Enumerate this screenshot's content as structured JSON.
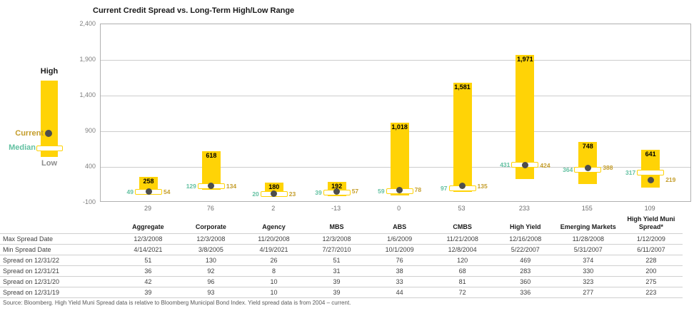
{
  "chart": {
    "title": "Current Credit Spread vs. Long-Term High/Low Range",
    "legend": {
      "high": "High",
      "current": "Current",
      "median": "Median",
      "low": "Low"
    }
  },
  "colors": {
    "bar_yellow": "#FFD306",
    "median_teal": "#63C1A2",
    "current_gold": "#C49D2B",
    "dot_gray": "#4D4D4D",
    "low_gray": "#6E6E6E",
    "grid_gray": "#CCCCCC"
  },
  "chart_data": {
    "type": "bar",
    "subtype": "floating-range-bar",
    "title": "Current Credit Spread vs. Long-Term High/Low Range",
    "categories": [
      "Aggregate",
      "Corporate",
      "Agency",
      "MBS",
      "ABS",
      "CMBS",
      "High Yield",
      "Emerging Markets",
      "High Yield Muni Spread*"
    ],
    "series": [
      {
        "name": "High",
        "values": [
          258,
          618,
          180,
          192,
          1018,
          1581,
          1971,
          748,
          641
        ]
      },
      {
        "name": "Median",
        "values": [
          49,
          129,
          20,
          39,
          59,
          97,
          431,
          364,
          317
        ]
      },
      {
        "name": "Current",
        "values": [
          54,
          134,
          23,
          57,
          78,
          135,
          424,
          388,
          219
        ]
      },
      {
        "name": "Low",
        "values": [
          29,
          76,
          2,
          -13,
          0,
          53,
          233,
          155,
          109
        ]
      }
    ],
    "ylim": [
      -100,
      2400
    ],
    "yticks": [
      2400,
      1900,
      1400,
      900,
      400,
      -100
    ],
    "grid": true,
    "legend_position": "left"
  },
  "table": {
    "columns": [
      "",
      "Aggregate",
      "Corporate",
      "Agency",
      "MBS",
      "ABS",
      "CMBS",
      "High Yield",
      "Emerging Markets",
      "High Yield Muni\nSpread*"
    ],
    "rows": [
      {
        "label": "Max Spread Date",
        "values": [
          "12/3/2008",
          "12/3/2008",
          "11/20/2008",
          "12/3/2008",
          "1/6/2009",
          "11/21/2008",
          "12/16/2008",
          "11/28/2008",
          "1/12/2009"
        ]
      },
      {
        "label": "Min Spread Date",
        "values": [
          "4/14/2021",
          "3/8/2005",
          "4/19/2021",
          "7/27/2010",
          "10/1/2009",
          "12/8/2004",
          "5/22/2007",
          "5/31/2007",
          "6/11/2007"
        ]
      },
      {
        "label": "Spread on 12/31/22",
        "values": [
          "51",
          "130",
          "26",
          "51",
          "76",
          "120",
          "469",
          "374",
          "228"
        ]
      },
      {
        "label": "Spread on 12/31/21",
        "values": [
          "36",
          "92",
          "8",
          "31",
          "38",
          "68",
          "283",
          "330",
          "200"
        ]
      },
      {
        "label": "Spread on 12/31/20",
        "values": [
          "42",
          "96",
          "10",
          "39",
          "33",
          "81",
          "360",
          "323",
          "275"
        ]
      },
      {
        "label": "Spread on 12/31/19",
        "values": [
          "39",
          "93",
          "10",
          "39",
          "44",
          "72",
          "336",
          "277",
          "223"
        ]
      }
    ]
  },
  "footnote": "Source: Bloomberg. High Yield Muni Spread data is relative to Bloomberg Municipal Bond Index. Yield spread data is from 2004 – current."
}
